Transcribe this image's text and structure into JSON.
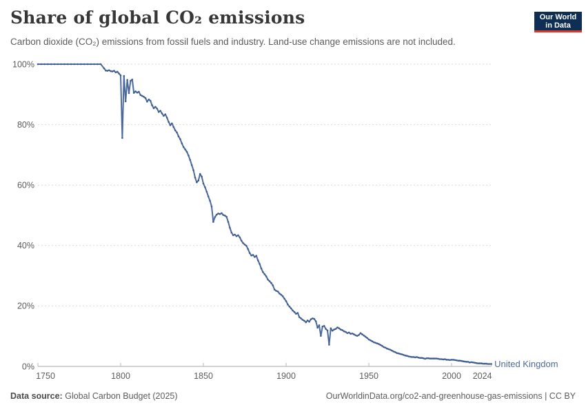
{
  "header": {
    "title": "Share of global CO₂ emissions",
    "subtitle": "Carbon dioxide (CO₂) emissions from fossil fuels and industry. Land-use change emissions are not included.",
    "logo": {
      "line1": "Our World",
      "line2": "in Data",
      "bg_color": "#0f2e53",
      "accent_color": "#d93a2b"
    }
  },
  "footer": {
    "source_label": "Data source:",
    "source_text": "Global Carbon Budget (2025)",
    "link_text": "OurWorldinData.org/co2-and-greenhouse-gas-emissions | CC BY"
  },
  "chart_data": {
    "type": "line",
    "title": "Share of global CO₂ emissions",
    "entity_label": "United Kingdom",
    "series_color": "#4c6a9c",
    "marker_color": "#3f5c90",
    "grid": "horizontal dashed",
    "legend_position": "end-of-line label",
    "xlim": [
      1750,
      2024
    ],
    "ylim": [
      0,
      100
    ],
    "x_ticks": [
      1750,
      1800,
      1850,
      1900,
      1950,
      2000,
      2024
    ],
    "x_tick_labels": [
      "1750",
      "1800",
      "1850",
      "1900",
      "1950",
      "2000",
      "2024"
    ],
    "y_ticks": [
      0,
      20,
      40,
      60,
      80,
      100
    ],
    "y_tick_labels": [
      "0%",
      "20%",
      "40%",
      "60%",
      "80%",
      "100%"
    ],
    "series": [
      {
        "name": "United Kingdom",
        "points": [
          [
            1750,
            100
          ],
          [
            1752,
            100
          ],
          [
            1754,
            100
          ],
          [
            1756,
            100
          ],
          [
            1758,
            100
          ],
          [
            1760,
            100
          ],
          [
            1762,
            100
          ],
          [
            1764,
            100
          ],
          [
            1766,
            100
          ],
          [
            1768,
            100
          ],
          [
            1770,
            100
          ],
          [
            1772,
            100
          ],
          [
            1774,
            100
          ],
          [
            1776,
            100
          ],
          [
            1778,
            100
          ],
          [
            1780,
            100
          ],
          [
            1782,
            100
          ],
          [
            1784,
            100
          ],
          [
            1786,
            100
          ],
          [
            1788,
            100
          ],
          [
            1790,
            98.6
          ],
          [
            1791,
            97.9
          ],
          [
            1792,
            97.8
          ],
          [
            1793,
            98
          ],
          [
            1794,
            97.7
          ],
          [
            1795,
            97.6
          ],
          [
            1796,
            97.8
          ],
          [
            1797,
            97.3
          ],
          [
            1798,
            97.5
          ],
          [
            1799,
            96.9
          ],
          [
            1800,
            96.3
          ],
          [
            1801,
            75.6
          ],
          [
            1802,
            96.1
          ],
          [
            1803,
            87.7
          ],
          [
            1804,
            94.8
          ],
          [
            1805,
            90.4
          ],
          [
            1806,
            94.5
          ],
          [
            1807,
            94.9
          ],
          [
            1808,
            90.5
          ],
          [
            1809,
            91
          ],
          [
            1810,
            90.6
          ],
          [
            1811,
            90.9
          ],
          [
            1812,
            89.8
          ],
          [
            1813,
            89.5
          ],
          [
            1814,
            89.2
          ],
          [
            1815,
            88.8
          ],
          [
            1816,
            87.6
          ],
          [
            1817,
            88.3
          ],
          [
            1818,
            87.9
          ],
          [
            1819,
            86.4
          ],
          [
            1820,
            85.4
          ],
          [
            1821,
            85.9
          ],
          [
            1822,
            85.3
          ],
          [
            1823,
            84.2
          ],
          [
            1824,
            84.6
          ],
          [
            1825,
            83.7
          ],
          [
            1826,
            82.9
          ],
          [
            1827,
            83.4
          ],
          [
            1828,
            82.3
          ],
          [
            1829,
            80.9
          ],
          [
            1830,
            79.8
          ],
          [
            1831,
            80.4
          ],
          [
            1832,
            79.2
          ],
          [
            1833,
            78.1
          ],
          [
            1834,
            77.4
          ],
          [
            1835,
            76.1
          ],
          [
            1836,
            75.2
          ],
          [
            1837,
            73.8
          ],
          [
            1838,
            72.6
          ],
          [
            1839,
            71.8
          ],
          [
            1840,
            71
          ],
          [
            1841,
            69.8
          ],
          [
            1842,
            68.3
          ],
          [
            1843,
            66.6
          ],
          [
            1844,
            64.9
          ],
          [
            1845,
            62.5
          ],
          [
            1846,
            60.9
          ],
          [
            1847,
            61.5
          ],
          [
            1848,
            63.7
          ],
          [
            1849,
            62.8
          ],
          [
            1850,
            60.5
          ],
          [
            1851,
            59.3
          ],
          [
            1852,
            57.8
          ],
          [
            1853,
            56.2
          ],
          [
            1854,
            54.8
          ],
          [
            1855,
            52.9
          ],
          [
            1856,
            47.8
          ],
          [
            1857,
            49.4
          ],
          [
            1858,
            50.2
          ],
          [
            1859,
            50.6
          ],
          [
            1860,
            50.4
          ],
          [
            1861,
            50.7
          ],
          [
            1862,
            50.1
          ],
          [
            1863,
            49.9
          ],
          [
            1864,
            49.5
          ],
          [
            1865,
            47.8
          ],
          [
            1866,
            45.9
          ],
          [
            1867,
            44.3
          ],
          [
            1868,
            43.4
          ],
          [
            1869,
            43.6
          ],
          [
            1870,
            43.1
          ],
          [
            1871,
            43.4
          ],
          [
            1872,
            42.7
          ],
          [
            1873,
            41.6
          ],
          [
            1874,
            40.8
          ],
          [
            1875,
            40.3
          ],
          [
            1876,
            39.9
          ],
          [
            1877,
            38.8
          ],
          [
            1878,
            37.5
          ],
          [
            1879,
            36.7
          ],
          [
            1880,
            36.9
          ],
          [
            1881,
            36.2
          ],
          [
            1882,
            36.6
          ],
          [
            1883,
            35.1
          ],
          [
            1884,
            33.9
          ],
          [
            1885,
            32.4
          ],
          [
            1886,
            31.2
          ],
          [
            1887,
            30.5
          ],
          [
            1888,
            29.8
          ],
          [
            1889,
            28.7
          ],
          [
            1890,
            28.2
          ],
          [
            1891,
            27.6
          ],
          [
            1892,
            26.8
          ],
          [
            1893,
            25.4
          ],
          [
            1894,
            25
          ],
          [
            1895,
            24.8
          ],
          [
            1896,
            24.1
          ],
          [
            1897,
            23.7
          ],
          [
            1898,
            23.2
          ],
          [
            1899,
            22.4
          ],
          [
            1900,
            21.6
          ],
          [
            1901,
            20.5
          ],
          [
            1902,
            19.8
          ],
          [
            1903,
            19.2
          ],
          [
            1904,
            18.5
          ],
          [
            1905,
            18
          ],
          [
            1906,
            17.4
          ],
          [
            1907,
            17.7
          ],
          [
            1908,
            16.3
          ],
          [
            1909,
            15.9
          ],
          [
            1910,
            15.4
          ],
          [
            1911,
            15.1
          ],
          [
            1912,
            14.6
          ],
          [
            1913,
            15.2
          ],
          [
            1914,
            14.8
          ],
          [
            1915,
            15.6
          ],
          [
            1916,
            15.9
          ],
          [
            1917,
            15.7
          ],
          [
            1918,
            14.9
          ],
          [
            1919,
            12.8
          ],
          [
            1920,
            13.6
          ],
          [
            1921,
            10.1
          ],
          [
            1922,
            13.2
          ],
          [
            1923,
            13.4
          ],
          [
            1924,
            12.4
          ],
          [
            1925,
            11.9
          ],
          [
            1926,
            7.2
          ],
          [
            1927,
            12.6
          ],
          [
            1928,
            11.8
          ],
          [
            1929,
            12.2
          ],
          [
            1930,
            12.4
          ],
          [
            1931,
            12.9
          ],
          [
            1932,
            12.6
          ],
          [
            1933,
            12.2
          ],
          [
            1934,
            12
          ],
          [
            1935,
            11.6
          ],
          [
            1936,
            11.4
          ],
          [
            1937,
            11
          ],
          [
            1938,
            11.2
          ],
          [
            1939,
            10.8
          ],
          [
            1940,
            10.9
          ],
          [
            1941,
            10.6
          ],
          [
            1942,
            10.3
          ],
          [
            1943,
            10.1
          ],
          [
            1944,
            10.4
          ],
          [
            1945,
            11
          ],
          [
            1946,
            10.6
          ],
          [
            1947,
            10.2
          ],
          [
            1948,
            9.8
          ],
          [
            1949,
            9.4
          ],
          [
            1950,
            8.9
          ],
          [
            1951,
            8.6
          ],
          [
            1952,
            8.3
          ],
          [
            1953,
            8
          ],
          [
            1954,
            7.8
          ],
          [
            1955,
            7.6
          ],
          [
            1956,
            7.4
          ],
          [
            1957,
            7.1
          ],
          [
            1958,
            6.8
          ],
          [
            1959,
            6.4
          ],
          [
            1960,
            6.2
          ],
          [
            1961,
            5.9
          ],
          [
            1962,
            5.7
          ],
          [
            1963,
            5.5
          ],
          [
            1964,
            5.2
          ],
          [
            1965,
            4.9
          ],
          [
            1966,
            4.7
          ],
          [
            1967,
            4.4
          ],
          [
            1968,
            4.3
          ],
          [
            1969,
            4.1
          ],
          [
            1970,
            4
          ],
          [
            1971,
            3.8
          ],
          [
            1972,
            3.6
          ],
          [
            1973,
            3.5
          ],
          [
            1974,
            3.3
          ],
          [
            1975,
            3.2
          ],
          [
            1976,
            3.1
          ],
          [
            1977,
            3.1
          ],
          [
            1978,
            3
          ],
          [
            1979,
            3.1
          ],
          [
            1980,
            2.9
          ],
          [
            1981,
            2.8
          ],
          [
            1982,
            2.8
          ],
          [
            1983,
            2.7
          ],
          [
            1984,
            2.5
          ],
          [
            1985,
            2.7
          ],
          [
            1986,
            2.7
          ],
          [
            1987,
            2.6
          ],
          [
            1988,
            2.6
          ],
          [
            1989,
            2.6
          ],
          [
            1990,
            2.6
          ],
          [
            1991,
            2.6
          ],
          [
            1992,
            2.5
          ],
          [
            1993,
            2.4
          ],
          [
            1994,
            2.4
          ],
          [
            1995,
            2.3
          ],
          [
            1996,
            2.4
          ],
          [
            1997,
            2.2
          ],
          [
            1998,
            2.2
          ],
          [
            1999,
            2.1
          ],
          [
            2000,
            2.2
          ],
          [
            2001,
            2.2
          ],
          [
            2002,
            2.1
          ],
          [
            2003,
            2
          ],
          [
            2004,
            1.9
          ],
          [
            2005,
            1.9
          ],
          [
            2006,
            1.8
          ],
          [
            2007,
            1.7
          ],
          [
            2008,
            1.6
          ],
          [
            2009,
            1.5
          ],
          [
            2010,
            1.5
          ],
          [
            2011,
            1.3
          ],
          [
            2012,
            1.4
          ],
          [
            2013,
            1.3
          ],
          [
            2014,
            1.2
          ],
          [
            2015,
            1.1
          ],
          [
            2016,
            1
          ],
          [
            2017,
            1
          ],
          [
            2018,
            1
          ],
          [
            2019,
            0.9
          ],
          [
            2020,
            0.9
          ],
          [
            2021,
            0.9
          ],
          [
            2022,
            0.8
          ],
          [
            2023,
            0.8
          ],
          [
            2024,
            0.8
          ]
        ]
      }
    ],
    "style_colors": {
      "gridline": "#d9d9d9",
      "axis_baseline": "#a6a6a6",
      "tick_mark": "#b9b9b9",
      "tick_text": "#5b5b5b"
    }
  }
}
